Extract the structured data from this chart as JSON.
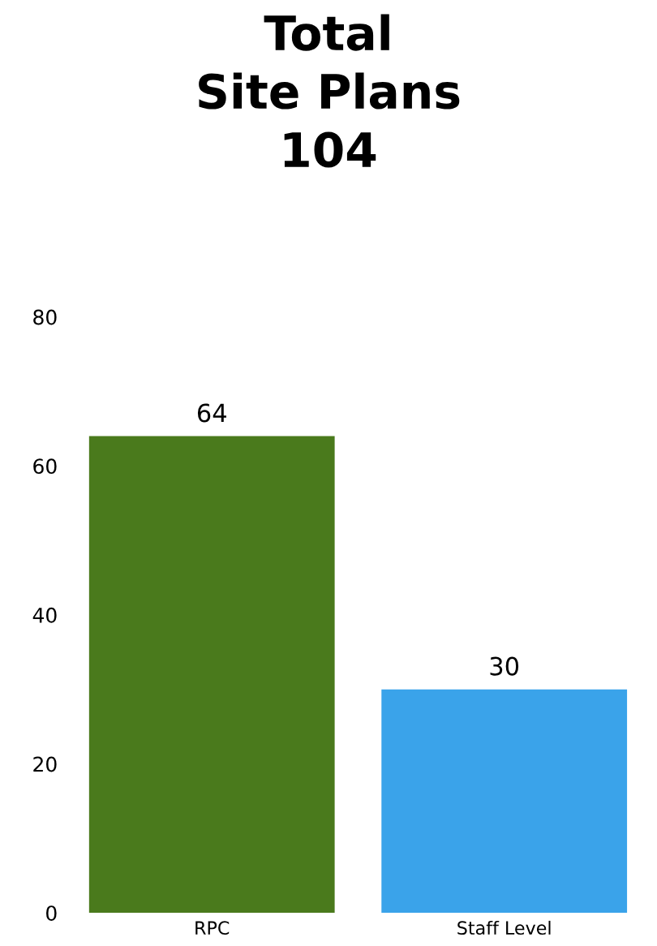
{
  "chart_data": {
    "type": "bar",
    "title": "Total\nSite Plans\n104",
    "categories": [
      "RPC",
      "Staff Level"
    ],
    "values": [
      64,
      30
    ],
    "colors": [
      "#4a7a1c",
      "#3aa3ea"
    ],
    "ylim": [
      0,
      80
    ],
    "yticks": [
      0,
      20,
      40,
      60,
      80
    ],
    "data_labels": true,
    "grid": false,
    "legend": false
  }
}
